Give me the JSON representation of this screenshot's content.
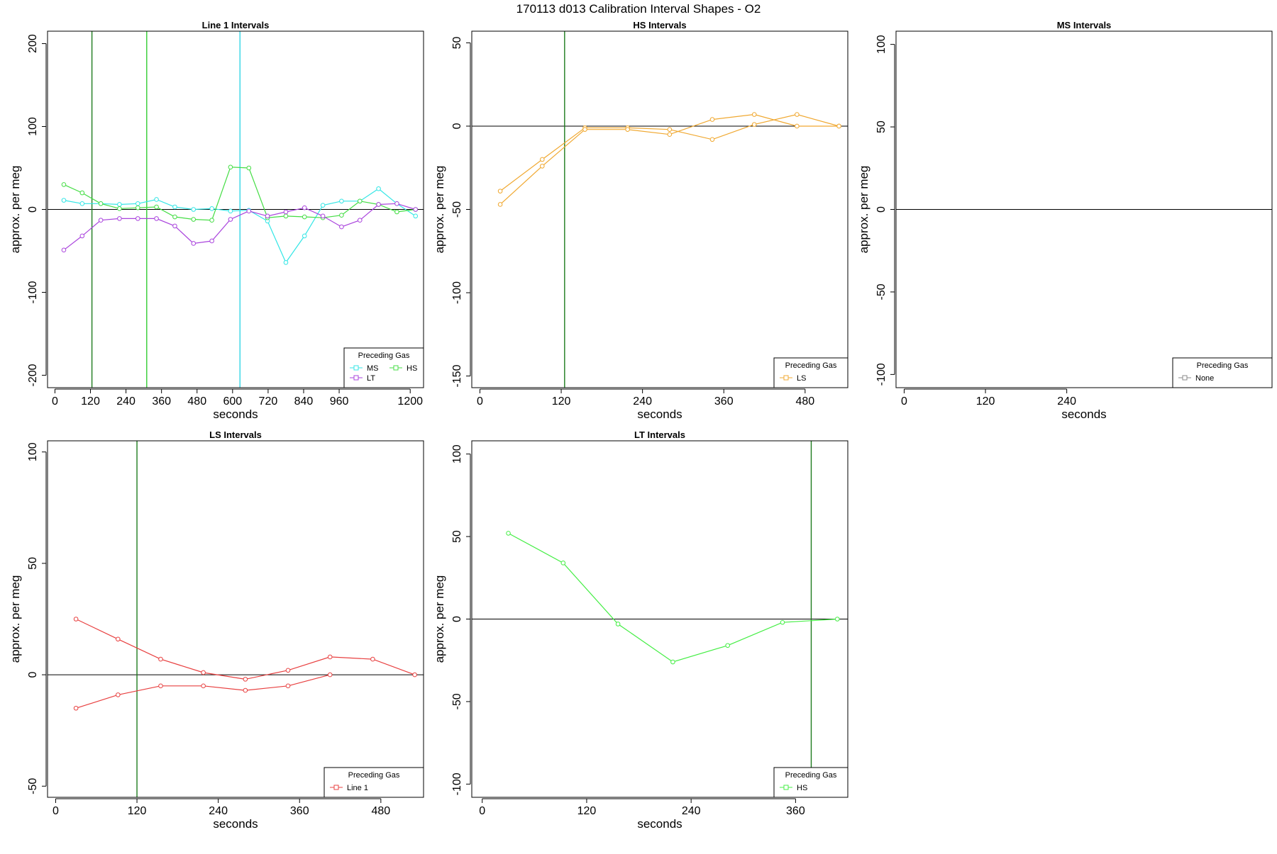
{
  "page_title": "170113   d013   Calibration Interval Shapes - O2",
  "chart_data": [
    {
      "type": "line",
      "title": "Line 1 Intervals",
      "xlabel": "seconds",
      "ylabel": "approx. per meg",
      "xlim": [
        -25,
        1245
      ],
      "ylim": [
        -215,
        215
      ],
      "xticks": [
        0,
        120,
        240,
        360,
        480,
        600,
        720,
        840,
        960,
        1200
      ],
      "yticks": [
        -200,
        -100,
        0,
        100,
        200
      ],
      "vlines": [
        {
          "x": 125,
          "color": "#1e7b1e"
        },
        {
          "x": 310,
          "color": "#33cc33"
        },
        {
          "x": 625,
          "color": "#33d6e6"
        }
      ],
      "legend": {
        "title": "Preceding Gas",
        "position": "bottom-right",
        "columns": 2,
        "entries": [
          "MS",
          "HS",
          "LT"
        ]
      },
      "series": [
        {
          "name": "MS",
          "color": "#33e6e6",
          "lines": [
            {
              "x": [
                30,
                92,
                155,
                218,
                280,
                343,
                405,
                468,
                530,
                593,
                655,
                718,
                780,
                843,
                905,
                968,
                1030,
                1093,
                1155,
                1218
              ],
              "y": [
                11,
                7,
                7,
                6,
                7,
                12,
                3,
                0,
                1,
                -2,
                -1,
                -14,
                -64,
                -32,
                5,
                10,
                10,
                25,
                7,
                -8
              ]
            }
          ]
        },
        {
          "name": "HS",
          "color": "#44dd44",
          "lines": [
            {
              "x": [
                30,
                92,
                155,
                218,
                280,
                343,
                405,
                468,
                530,
                593,
                655,
                718,
                780,
                843,
                905,
                968,
                1030,
                1093,
                1155,
                1218
              ],
              "y": [
                30,
                20,
                7,
                1,
                2,
                3,
                -9,
                -12,
                -13,
                51,
                50,
                -10,
                -8,
                -9,
                -10,
                -7,
                10,
                6,
                -3,
                0
              ]
            }
          ]
        },
        {
          "name": "LT",
          "color": "#aa44dd",
          "lines": [
            {
              "x": [
                30,
                92,
                155,
                218,
                280,
                343,
                405,
                468,
                530,
                593,
                655,
                718,
                780,
                843,
                905,
                968,
                1030,
                1093,
                1155,
                1218
              ],
              "y": [
                -49,
                -32,
                -13,
                -11,
                -11,
                -11,
                -20,
                -41,
                -38,
                -12,
                -2,
                -8,
                -3,
                2,
                -8,
                -21,
                -13,
                6,
                7,
                0
              ]
            }
          ]
        }
      ]
    },
    {
      "type": "line",
      "title": "HS Intervals",
      "xlabel": "seconds",
      "ylabel": "approx. per meg",
      "xlim": [
        -12,
        543
      ],
      "ylim": [
        -157,
        57
      ],
      "xticks": [
        0,
        120,
        240,
        360,
        480
      ],
      "yticks": [
        -150,
        -100,
        -50,
        0,
        50
      ],
      "vlines": [
        {
          "x": 125,
          "color": "#1e7b1e"
        }
      ],
      "legend": {
        "title": "Preceding Gas",
        "position": "bottom-right",
        "columns": 1,
        "entries": [
          "LS"
        ]
      },
      "series": [
        {
          "name": "LS",
          "color": "#f0a830",
          "lines": [
            {
              "x": [
                30,
                92,
                155,
                218,
                280,
                343,
                405,
                468,
                530
              ],
              "y": [
                -39,
                -20,
                -1,
                -1,
                -2,
                -8,
                1,
                7,
                0
              ]
            },
            {
              "x": [
                30,
                92,
                155,
                218,
                280,
                343,
                405,
                468,
                530
              ],
              "y": [
                -47,
                -24,
                -2,
                -2,
                -5,
                4,
                7,
                0,
                0
              ]
            }
          ]
        }
      ]
    },
    {
      "type": "line",
      "title": "MS Intervals",
      "xlabel": "seconds",
      "ylabel": "approx. per meg",
      "xlim": [
        -12,
        543
      ],
      "ylim": [
        -108,
        108
      ],
      "xticks": [
        0,
        120,
        240
      ],
      "yticks": [
        -100,
        -50,
        0,
        50,
        100
      ],
      "vlines": [],
      "legend": {
        "title": "Preceding Gas",
        "position": "bottom-right",
        "columns": 1,
        "entries": [
          "None"
        ]
      },
      "series": [
        {
          "name": "None",
          "color": "#888888",
          "lines": []
        }
      ]
    },
    {
      "type": "line",
      "title": "LS Intervals",
      "xlabel": "seconds",
      "ylabel": "approx. per meg",
      "xlim": [
        -12,
        543
      ],
      "ylim": [
        -55,
        105
      ],
      "xticks": [
        0,
        120,
        240,
        360,
        480
      ],
      "yticks": [
        -50,
        0,
        50,
        100
      ],
      "vlines": [
        {
          "x": 120,
          "color": "#1e7b1e"
        }
      ],
      "legend": {
        "title": "Preceding Gas",
        "position": "bottom-right",
        "columns": 1,
        "entries": [
          "Line 1"
        ]
      },
      "series": [
        {
          "name": "Line 1",
          "color": "#e84040",
          "lines": [
            {
              "x": [
                30,
                92,
                155,
                218,
                280,
                343,
                405,
                468,
                530
              ],
              "y": [
                25,
                16,
                7,
                1,
                -2,
                2,
                8,
                7,
                0
              ]
            },
            {
              "x": [
                30,
                92,
                155,
                218,
                280,
                343,
                405
              ],
              "y": [
                -15,
                -9,
                -5,
                -5,
                -7,
                -5,
                0
              ]
            }
          ]
        }
      ]
    },
    {
      "type": "line",
      "title": "LT Intervals",
      "xlabel": "seconds",
      "ylabel": "approx. per meg",
      "xlim": [
        -12,
        420
      ],
      "ylim": [
        -108,
        108
      ],
      "xticks": [
        0,
        120,
        240,
        360
      ],
      "yticks": [
        -100,
        -50,
        0,
        50,
        100
      ],
      "vlines": [
        {
          "x": 378,
          "color": "#1e7b1e"
        }
      ],
      "legend": {
        "title": "Preceding Gas",
        "position": "bottom-right",
        "columns": 1,
        "entries": [
          "HS"
        ]
      },
      "series": [
        {
          "name": "HS",
          "color": "#44ee44",
          "lines": [
            {
              "x": [
                30,
                93,
                156,
                219,
                282,
                345,
                408
              ],
              "y": [
                52,
                34,
                -3,
                -26,
                -16,
                -2,
                0
              ]
            }
          ]
        }
      ]
    }
  ]
}
